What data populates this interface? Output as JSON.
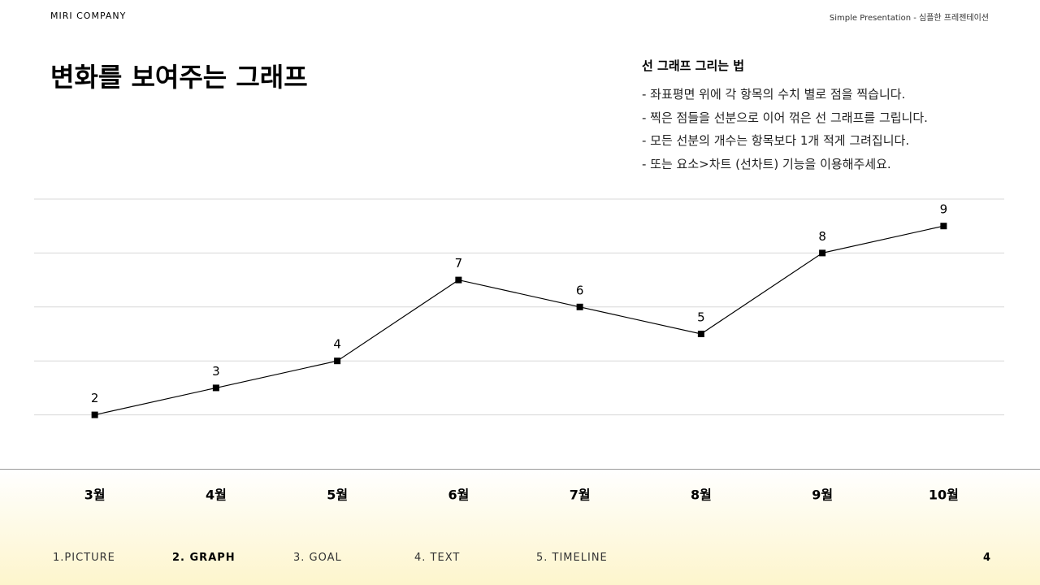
{
  "header": {
    "company": "MIRI COMPANY",
    "subtitle": "Simple Presentation - 심플한 프레젠테이션"
  },
  "title": "변화를 보여주는 그래프",
  "note": {
    "heading": "선 그래프 그리는 법",
    "lines": [
      "- 좌표평면 위에 각 항목의 수치 별로 점을 찍습니다.",
      "- 찍은 점들을 선분으로 이어 꺾은 선 그래프를 그립니다.",
      "- 모든 선분의 개수는 항목보다 1개 적게 그려집니다.",
      "- 또는 요소>차트 (선차트) 기능을 이용해주세요."
    ]
  },
  "chart_data": {
    "type": "line",
    "categories": [
      "3월",
      "4월",
      "5월",
      "6월",
      "7월",
      "8월",
      "9월",
      "10월"
    ],
    "values": [
      2,
      3,
      4,
      7,
      6,
      5,
      8,
      9
    ],
    "color": "#000000",
    "ylim": [
      0,
      10
    ],
    "yticks": [
      2,
      4,
      6,
      8,
      10
    ],
    "grid": true
  },
  "footer": {
    "nav": [
      "1.PICTURE",
      "2. GRAPH",
      "3. GOAL",
      "4. TEXT",
      "5. TIMELINE"
    ],
    "active": 1,
    "page": "4"
  }
}
